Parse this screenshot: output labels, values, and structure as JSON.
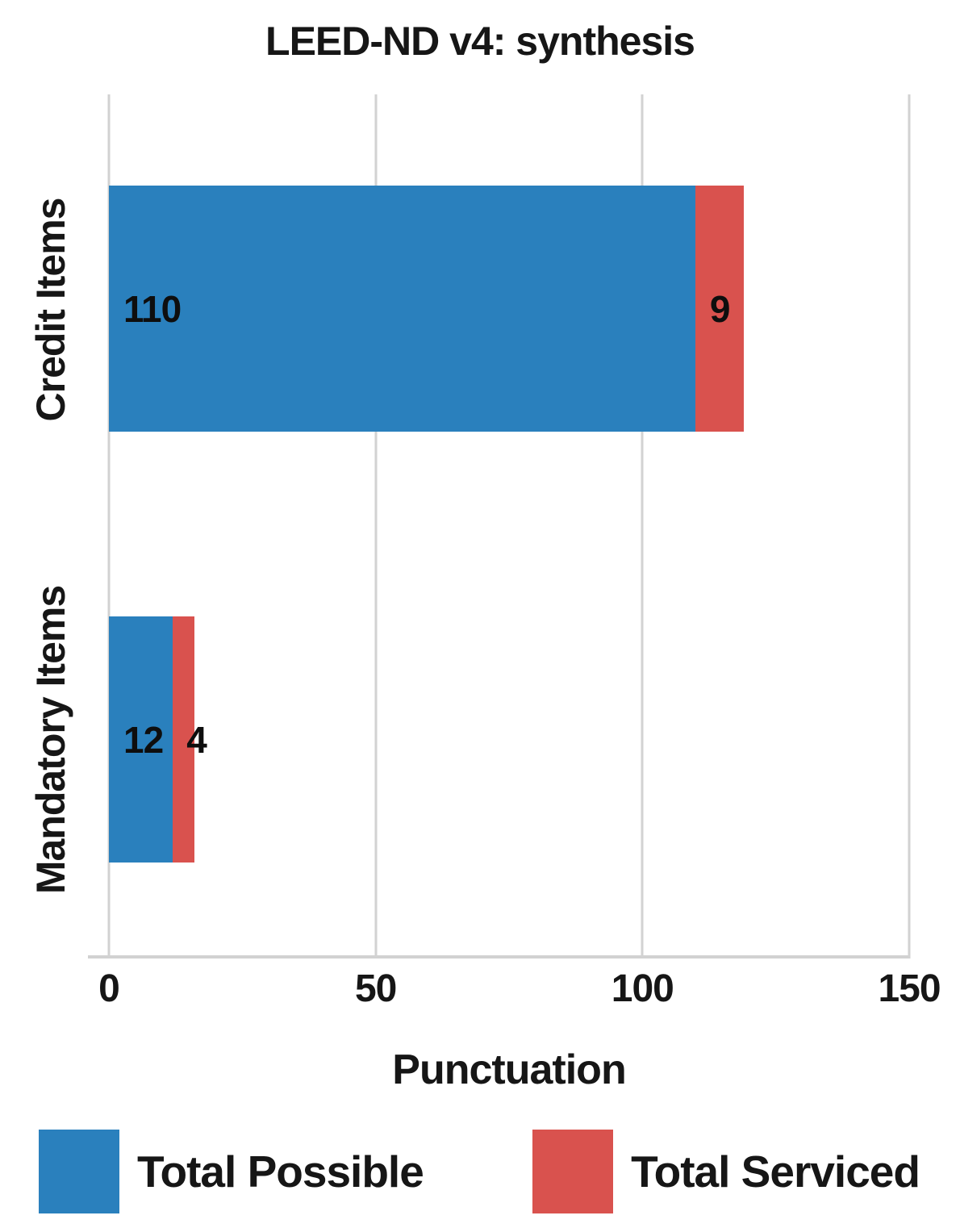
{
  "chart_data": {
    "type": "bar",
    "orientation": "horizontal",
    "stacked": true,
    "title": "LEED-ND v4: synthesis",
    "categories": [
      "Credit Items",
      "Mandatory Items"
    ],
    "series": [
      {
        "name": "Total Possible",
        "color": "#2a80bd",
        "values": [
          110,
          12
        ]
      },
      {
        "name": "Total Serviced",
        "color": "#d9524e",
        "values": [
          9,
          4
        ]
      }
    ],
    "xlabel": "Punctuation",
    "xlim": [
      0,
      150
    ],
    "xticks": [
      0,
      50,
      100,
      150
    ],
    "grid": true,
    "gridline_color": "#d2d2d2",
    "legend_position": "bottom",
    "bar_label_color": "#0e0e0e"
  }
}
